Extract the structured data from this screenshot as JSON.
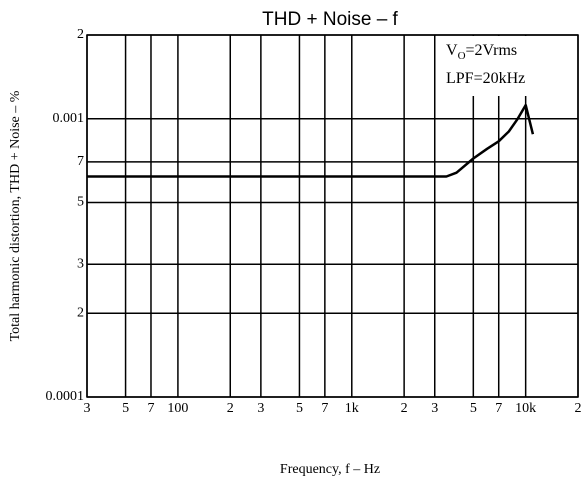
{
  "chart_data": {
    "type": "line",
    "title": "THD + Noise  –  f",
    "x_label": "Frequency, f – Hz",
    "y_label": "Total harmonic distortion, THD + Noise – %",
    "annotations": [
      [
        "V",
        "O",
        "=2Vrms"
      ],
      [
        "LPF=20kHz"
      ]
    ],
    "x_log": true,
    "y_log": true,
    "grid": true,
    "xlim": [
      30,
      20000
    ],
    "ylim": [
      0.0001,
      0.002
    ],
    "xticks": [
      {
        "value": 30,
        "label": "3"
      },
      {
        "value": 50,
        "label": "5"
      },
      {
        "value": 70,
        "label": "7"
      },
      100,
      {
        "value": 200,
        "label": "2"
      },
      {
        "value": 300,
        "label": "3"
      },
      {
        "value": 500,
        "label": "5"
      },
      {
        "value": 700,
        "label": "7"
      },
      {
        "value": 1000,
        "label": "1k"
      },
      {
        "value": 2000,
        "label": "2"
      },
      {
        "value": 3000,
        "label": "3"
      },
      {
        "value": 5000,
        "label": "5"
      },
      {
        "value": 7000,
        "label": "7"
      },
      {
        "value": 10000,
        "label": "10k"
      },
      {
        "value": 20000,
        "label": "2"
      }
    ],
    "yticks": [
      0.0001,
      {
        "value": 0.0002,
        "label": "2"
      },
      {
        "value": 0.0003,
        "label": "3"
      },
      {
        "value": 0.0005,
        "label": "5"
      },
      {
        "value": 0.0007,
        "label": "7"
      },
      0.001,
      {
        "value": 0.002,
        "label": "2"
      }
    ],
    "series": [
      {
        "color": "#000000",
        "x": [
          30,
          100,
          1000,
          3500,
          4000,
          5000,
          6000,
          7000,
          8000,
          9000,
          10000,
          11000
        ],
        "values": [
          0.00062,
          0.00062,
          0.00062,
          0.00062,
          0.00064,
          0.00072,
          0.00078,
          0.00083,
          0.0009,
          0.001,
          0.00112,
          0.00088
        ]
      }
    ]
  }
}
